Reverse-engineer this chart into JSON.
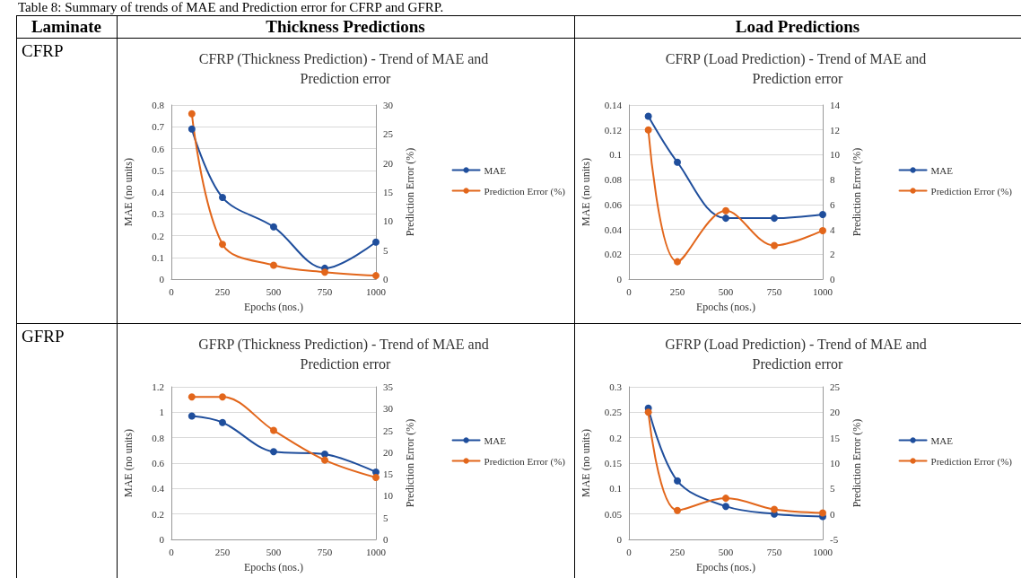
{
  "chart_data": [
    {
      "type": "other",
      "title": "Table 8: Summary of trends of MAE and Prediction error for CFRP and GFRP.",
      "annotations": [
        "Laminate",
        "Thickness Predictions",
        "Load Predictions",
        "CFRP",
        "GFRP"
      ]
    },
    {
      "type": "line",
      "title": "CFRP (Thickness Prediction) - Trend of MAE and Prediction error",
      "xlabel": "Epochs (nos.)",
      "ylabel": "MAE (no units)",
      "y2label": "Prediction Error (%)",
      "x": [
        100,
        250,
        500,
        750,
        1000
      ],
      "xlim": [
        0,
        1000
      ],
      "xticks": [
        0,
        250,
        500,
        750,
        1000
      ],
      "ylim": [
        0,
        0.8
      ],
      "yticks": [
        0,
        0.1,
        0.2,
        0.3,
        0.4,
        0.5,
        0.6,
        0.7,
        0.8
      ],
      "y2lim": [
        0,
        30
      ],
      "y2ticks": [
        0,
        5,
        10,
        15,
        20,
        25,
        30
      ],
      "grid": "y",
      "legend": "right",
      "marker": "circle",
      "series": [
        {
          "name": "MAE",
          "color": "#1f4e9c",
          "values": [
            0.69,
            0.375,
            0.24,
            0.05,
            0.17
          ]
        },
        {
          "name": "Prediction Error (%)",
          "color": "#e2661b",
          "axis": "y2",
          "values": [
            28.5,
            6,
            2.4,
            1.2,
            0.6
          ]
        }
      ]
    },
    {
      "type": "line",
      "title": "CFRP (Load Prediction) - Trend of MAE and Prediction error",
      "xlabel": "Epochs (nos.)",
      "ylabel": "MAE (no units)",
      "y2label": "Prediction Error (%)",
      "x": [
        100,
        250,
        500,
        750,
        1000
      ],
      "xlim": [
        0,
        1000
      ],
      "xticks": [
        0,
        250,
        500,
        750,
        1000
      ],
      "ylim": [
        0,
        0.14
      ],
      "yticks": [
        0,
        0.02,
        0.04,
        0.06,
        0.08,
        0.1,
        0.12,
        0.14
      ],
      "y2lim": [
        0,
        14
      ],
      "y2ticks": [
        0,
        2,
        4,
        6,
        8,
        10,
        12,
        14
      ],
      "grid": "y",
      "legend": "right",
      "marker": "circle",
      "series": [
        {
          "name": "MAE",
          "color": "#1f4e9c",
          "values": [
            0.131,
            0.094,
            0.049,
            0.049,
            0.052
          ]
        },
        {
          "name": "Prediction Error (%)",
          "color": "#e2661b",
          "axis": "y2",
          "values": [
            12,
            1.4,
            5.5,
            2.7,
            3.9
          ]
        }
      ]
    },
    {
      "type": "line",
      "title": "GFRP (Thickness Prediction) - Trend of MAE and Prediction error",
      "xlabel": "Epochs (nos.)",
      "ylabel": "MAE (no units)",
      "y2label": "Prediction Error (%)",
      "x": [
        100,
        250,
        500,
        750,
        1000
      ],
      "xlim": [
        0,
        1000
      ],
      "xticks": [
        0,
        250,
        500,
        750,
        1000
      ],
      "ylim": [
        0,
        1.2
      ],
      "yticks": [
        0,
        0.2,
        0.4,
        0.6,
        0.8,
        1,
        1.2
      ],
      "y2lim": [
        0,
        35
      ],
      "y2ticks": [
        0,
        5,
        10,
        15,
        20,
        25,
        30,
        35
      ],
      "grid": "y",
      "legend": "right",
      "marker": "circle",
      "series": [
        {
          "name": "MAE",
          "color": "#1f4e9c",
          "values": [
            0.97,
            0.92,
            0.69,
            0.67,
            0.53
          ]
        },
        {
          "name": "Prediction Error (%)",
          "color": "#e2661b",
          "axis": "y2",
          "values": [
            32.7,
            32.7,
            25,
            18.2,
            14.2
          ]
        }
      ]
    },
    {
      "type": "line",
      "title": "GFRP (Load Prediction) - Trend of MAE and Prediction error",
      "xlabel": "Epochs (nos.)",
      "ylabel": "MAE (no units)",
      "y2label": "Prediction Error (%)",
      "x": [
        100,
        250,
        500,
        750,
        1000
      ],
      "xlim": [
        0,
        1000
      ],
      "xticks": [
        0,
        250,
        500,
        750,
        1000
      ],
      "ylim": [
        0,
        0.3
      ],
      "yticks": [
        0,
        0.05,
        0.1,
        0.15,
        0.2,
        0.25,
        0.3
      ],
      "y2lim": [
        -5,
        25
      ],
      "y2ticks": [
        -5,
        0,
        5,
        10,
        15,
        20,
        25
      ],
      "grid": "y",
      "legend": "right",
      "marker": "circle",
      "series": [
        {
          "name": "MAE",
          "color": "#1f4e9c",
          "values": [
            0.258,
            0.115,
            0.065,
            0.05,
            0.045
          ]
        },
        {
          "name": "Prediction Error (%)",
          "color": "#e2661b",
          "axis": "y2",
          "values": [
            20,
            0.7,
            3.1,
            0.9,
            0.2
          ]
        }
      ]
    }
  ]
}
